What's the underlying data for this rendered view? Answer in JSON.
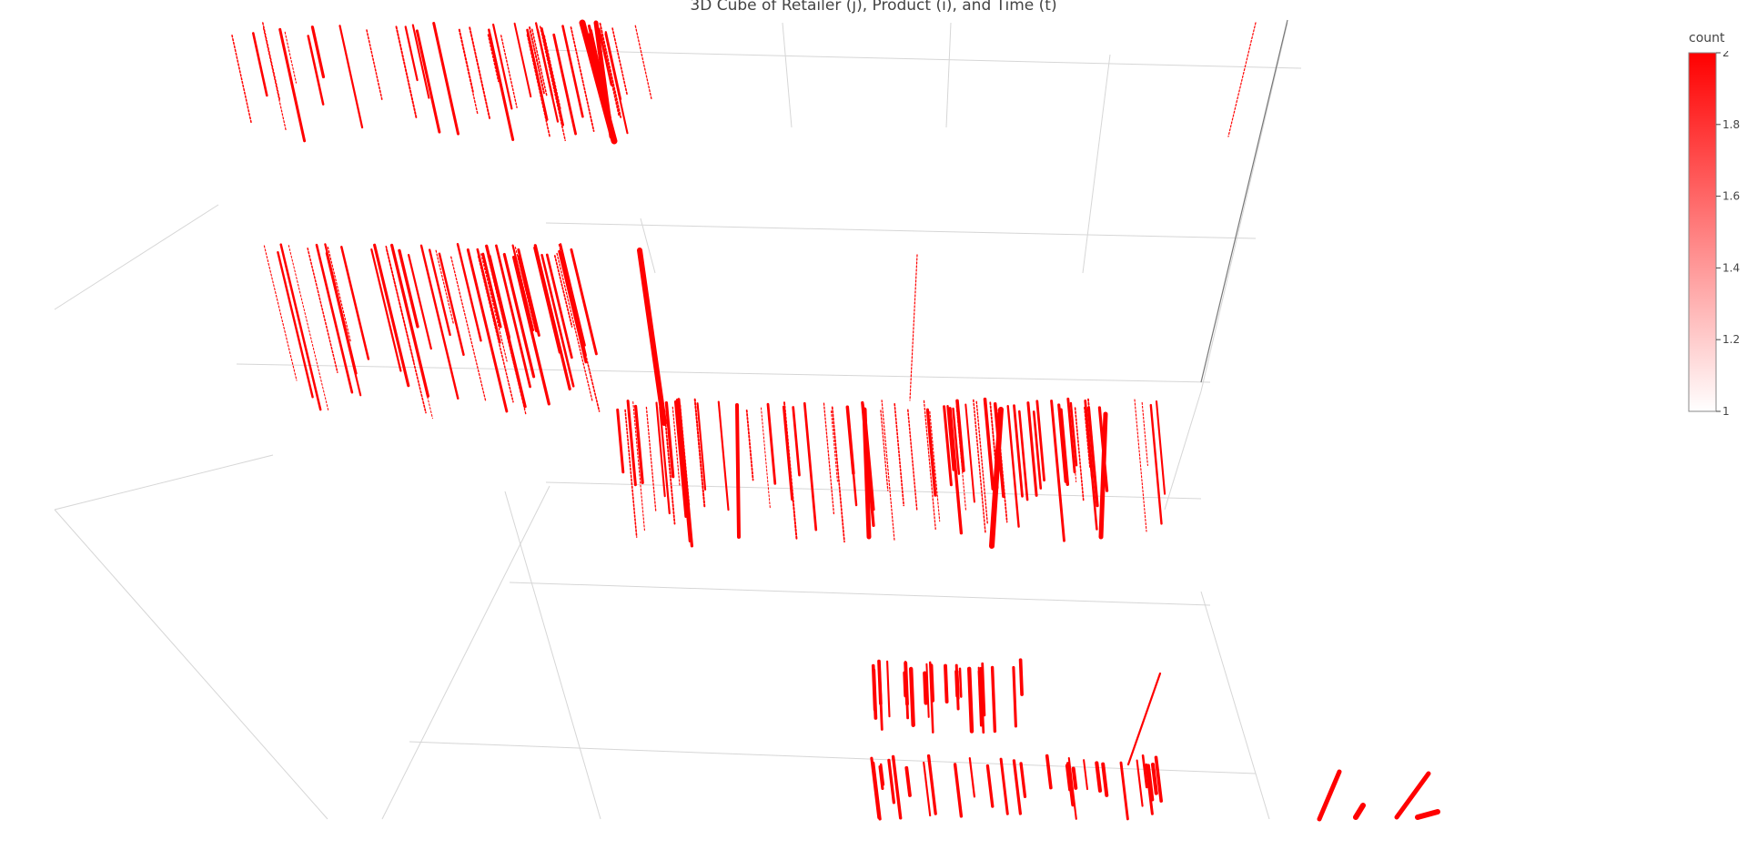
{
  "chart_data": {
    "type": "scatter3d",
    "title": "3D Cube of Retailer (j), Product (i), and Time (t)",
    "axes": {
      "x": {
        "label": ""
      },
      "y": {
        "label": ""
      },
      "z": {
        "label": ""
      }
    },
    "grid": true,
    "marker_color": "#ff0000",
    "colorbar": {
      "title": "count",
      "range": [
        1,
        2
      ],
      "ticks": [
        1,
        1.2,
        1.4,
        1.6,
        1.8,
        2
      ],
      "tick_labels": [
        "1",
        "1.2",
        "1.4",
        "1.6",
        "1.8",
        "2"
      ],
      "colorscale": [
        "#ffffff",
        "#ff0000"
      ]
    }
  }
}
